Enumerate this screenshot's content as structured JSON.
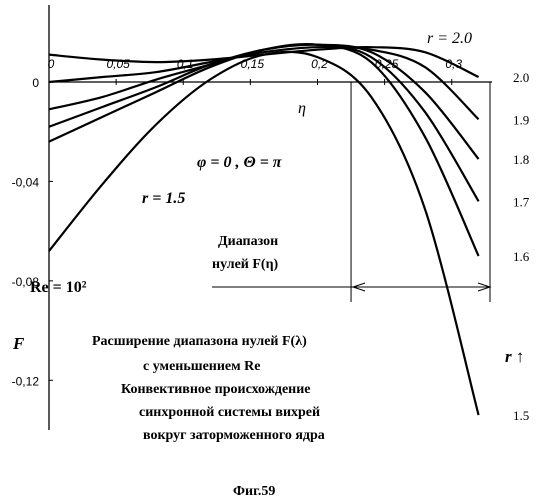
{
  "chart_data": {
    "type": "line",
    "xlabel": "η",
    "ylabel": "F",
    "xlim": [
      0,
      0.33
    ],
    "ylim": [
      -0.14,
      0.02
    ],
    "x_ticks": [
      "0",
      "0,05",
      "0,1",
      "0,15",
      "0,2",
      "0,25",
      "0,3"
    ],
    "x_tick_values": [
      0,
      0.05,
      0.1,
      0.15,
      0.2,
      0.25,
      0.3
    ],
    "y_ticks": [
      "0",
      "-0,04",
      "-0,08",
      "-0,12"
    ],
    "y_tick_values": [
      0,
      -0.04,
      -0.08,
      -0.12
    ],
    "series": [
      {
        "name": "1.5",
        "x": [
          0,
          0.04,
          0.08,
          0.12,
          0.16,
          0.2,
          0.24,
          0.28,
          0.32
        ],
        "y": [
          -0.068,
          -0.041,
          -0.017,
          0.001,
          0.011,
          0.01,
          -0.006,
          -0.051,
          -0.134
        ]
      },
      {
        "name": "1.6",
        "x": [
          0,
          0.04,
          0.08,
          0.12,
          0.16,
          0.2,
          0.24,
          0.28,
          0.32
        ],
        "y": [
          -0.024,
          -0.014,
          -0.004,
          0.006,
          0.013,
          0.015,
          0.008,
          -0.022,
          -0.07
        ]
      },
      {
        "name": "1.7",
        "x": [
          0,
          0.04,
          0.08,
          0.12,
          0.16,
          0.2,
          0.24,
          0.28,
          0.32
        ],
        "y": [
          -0.018,
          -0.01,
          -0.002,
          0.007,
          0.013,
          0.015,
          0.01,
          -0.012,
          -0.048
        ]
      },
      {
        "name": "1.8",
        "x": [
          0,
          0.04,
          0.08,
          0.12,
          0.16,
          0.2,
          0.24,
          0.28,
          0.32
        ],
        "y": [
          -0.011,
          -0.006,
          0.001,
          0.007,
          0.013,
          0.015,
          0.012,
          -0.004,
          -0.031
        ]
      },
      {
        "name": "1.9",
        "x": [
          0,
          0.04,
          0.08,
          0.12,
          0.16,
          0.2,
          0.24,
          0.28,
          0.32
        ],
        "y": [
          0,
          0.002,
          0.004,
          0.008,
          0.012,
          0.014,
          0.013,
          0.006,
          -0.015
        ]
      },
      {
        "name": "2.0",
        "x": [
          0,
          0.04,
          0.08,
          0.12,
          0.16,
          0.2,
          0.24,
          0.28,
          0.32
        ],
        "y": [
          0.011,
          0.009,
          0.008,
          0.009,
          0.011,
          0.013,
          0.014,
          0.012,
          0.002
        ]
      }
    ],
    "annotations": {
      "r_top": "r = 2.0",
      "r_bottom": "r = 1.5",
      "phi_theta": "φ = 0 , Θ = π",
      "range_title_1": "Диапазон",
      "range_title_2": "нулей F(η)",
      "re": "Re = 10²",
      "r_arrow": "r ↑",
      "desc_1": "Расширение диапазона нулей F(λ)",
      "desc_2": "с уменьшением   Re",
      "desc_3": "Конвективное происхождение",
      "desc_4": "синхронной системы вихрей",
      "desc_5": "вокруг заторможенного ядра"
    },
    "range_bracket_x": [
      0.225,
      0.33
    ],
    "grid": false,
    "caption": "Фиг.59"
  }
}
